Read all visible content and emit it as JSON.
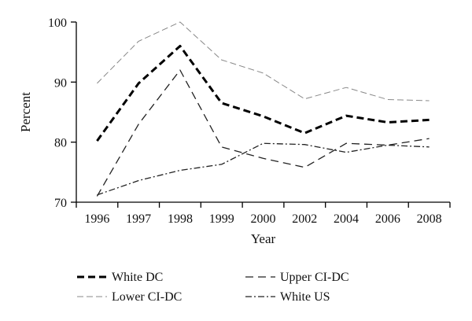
{
  "chart_data": {
    "type": "line",
    "xlabel": "Year",
    "ylabel": "Percent",
    "categories": [
      "1996",
      "1997",
      "1998",
      "1999",
      "2000",
      "2002",
      "2004",
      "2006",
      "2008"
    ],
    "ylim": [
      70,
      100
    ],
    "yticks": [
      "70",
      "80",
      "90",
      "100"
    ],
    "grid": false,
    "legend_position": "bottom",
    "series": [
      {
        "name": "White DC",
        "values": [
          80.2,
          89.8,
          96.0,
          86.5,
          84.3,
          81.5,
          84.4,
          83.3,
          83.7
        ],
        "color": "#000000",
        "style": "bold-dashed"
      },
      {
        "name": "Upper CI-DC",
        "values": [
          71.0,
          83.0,
          92.0,
          79.2,
          77.3,
          75.8,
          79.8,
          79.5,
          80.6
        ],
        "color": "#222222",
        "style": "dashed"
      },
      {
        "name": "Lower CI-DC",
        "values": [
          89.8,
          96.8,
          100.0,
          93.7,
          91.5,
          87.2,
          89.1,
          87.1,
          86.9
        ],
        "color": "#888888",
        "style": "light-dashed"
      },
      {
        "name": "White US",
        "values": [
          71.2,
          73.6,
          75.3,
          76.3,
          79.8,
          79.6,
          78.3,
          79.5,
          79.2
        ],
        "color": "#222222",
        "style": "dash-dot"
      }
    ]
  }
}
